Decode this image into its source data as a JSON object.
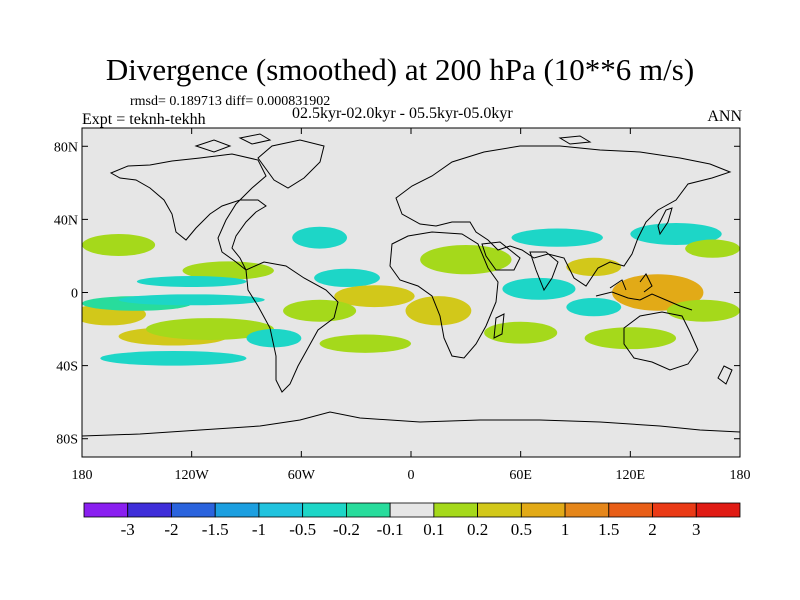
{
  "chart_data": {
    "type": "heatmap",
    "title": "Divergence (smoothed) at 200 hPa (10**6 m/s)",
    "stats_text": "rmsd= 0.189713 diff= 0.000831902",
    "expt_label": "Expt = teknh-tekhh",
    "period_label": "02.5kyr-02.0kyr - 05.5kyr-05.0kyr",
    "season_label": "ANN",
    "x_ticks": [
      "180",
      "120W",
      "60W",
      "0",
      "60E",
      "120E",
      "180"
    ],
    "y_ticks": [
      "80N",
      "40N",
      "0",
      "40S",
      "80S"
    ],
    "x_tick_values": [
      -180,
      -120,
      -60,
      0,
      60,
      120,
      180
    ],
    "y_tick_values": [
      80,
      40,
      0,
      -40,
      -80
    ],
    "xlim": [
      -180,
      180
    ],
    "ylim": [
      -90,
      90
    ],
    "colorbar_labels": [
      "-3",
      "-2",
      "-1.5",
      "-1",
      "-0.5",
      "-0.2",
      "-0.1",
      "0.1",
      "0.2",
      "0.5",
      "1",
      "1.5",
      "2",
      "3"
    ],
    "colorbar_colors": [
      "#8a1ff0",
      "#3f2ed9",
      "#2a63dd",
      "#1c9fe0",
      "#21c3de",
      "#1dd6c7",
      "#28dc9c",
      "#e6e6e6",
      "#a5d91b",
      "#d2c81a",
      "#e2aa17",
      "#e5861a",
      "#e85e17",
      "#ea3a16",
      "#e01b14"
    ],
    "anomaly_regions": [
      {
        "lon": -165,
        "lat": -12,
        "rlon": 20,
        "rlat": 6,
        "level": 9
      },
      {
        "lon": -130,
        "lat": -24,
        "rlon": 30,
        "rlat": 5,
        "level": 9
      },
      {
        "lon": -110,
        "lat": -20,
        "rlon": 35,
        "rlat": 6,
        "level": 8
      },
      {
        "lon": -150,
        "lat": -6,
        "rlon": 30,
        "rlat": 4,
        "level": 6
      },
      {
        "lon": -120,
        "lat": -4,
        "rlon": 40,
        "rlat": 3,
        "level": 5
      },
      {
        "lon": -130,
        "lat": -36,
        "rlon": 40,
        "rlat": 4,
        "level": 5
      },
      {
        "lon": -160,
        "lat": 26,
        "rlon": 20,
        "rlat": 6,
        "level": 8
      },
      {
        "lon": -100,
        "lat": 12,
        "rlon": 25,
        "rlat": 5,
        "level": 8
      },
      {
        "lon": -120,
        "lat": 6,
        "rlon": 30,
        "rlat": 3,
        "level": 5
      },
      {
        "lon": -50,
        "lat": 30,
        "rlon": 15,
        "rlat": 6,
        "level": 5
      },
      {
        "lon": -35,
        "lat": 8,
        "rlon": 18,
        "rlat": 5,
        "level": 5
      },
      {
        "lon": -20,
        "lat": -2,
        "rlon": 22,
        "rlat": 6,
        "level": 9
      },
      {
        "lon": -50,
        "lat": -10,
        "rlon": 20,
        "rlat": 6,
        "level": 8
      },
      {
        "lon": -25,
        "lat": -28,
        "rlon": 25,
        "rlat": 5,
        "level": 8
      },
      {
        "lon": -75,
        "lat": -25,
        "rlon": 15,
        "rlat": 5,
        "level": 5
      },
      {
        "lon": 30,
        "lat": 18,
        "rlon": 25,
        "rlat": 8,
        "level": 8
      },
      {
        "lon": 15,
        "lat": -10,
        "rlon": 18,
        "rlat": 8,
        "level": 9
      },
      {
        "lon": 70,
        "lat": 2,
        "rlon": 20,
        "rlat": 6,
        "level": 5
      },
      {
        "lon": 80,
        "lat": 30,
        "rlon": 25,
        "rlat": 5,
        "level": 5
      },
      {
        "lon": 60,
        "lat": -22,
        "rlon": 20,
        "rlat": 6,
        "level": 8
      },
      {
        "lon": 100,
        "lat": 14,
        "rlon": 15,
        "rlat": 5,
        "level": 9
      },
      {
        "lon": 135,
        "lat": 0,
        "rlon": 25,
        "rlat": 10,
        "level": 10
      },
      {
        "lon": 145,
        "lat": 32,
        "rlon": 25,
        "rlat": 6,
        "level": 5
      },
      {
        "lon": 165,
        "lat": 24,
        "rlon": 15,
        "rlat": 5,
        "level": 8
      },
      {
        "lon": 120,
        "lat": -25,
        "rlon": 25,
        "rlat": 6,
        "level": 8
      },
      {
        "lon": 160,
        "lat": -10,
        "rlon": 20,
        "rlat": 6,
        "level": 8
      },
      {
        "lon": 100,
        "lat": -8,
        "rlon": 15,
        "rlat": 5,
        "level": 5
      }
    ]
  }
}
